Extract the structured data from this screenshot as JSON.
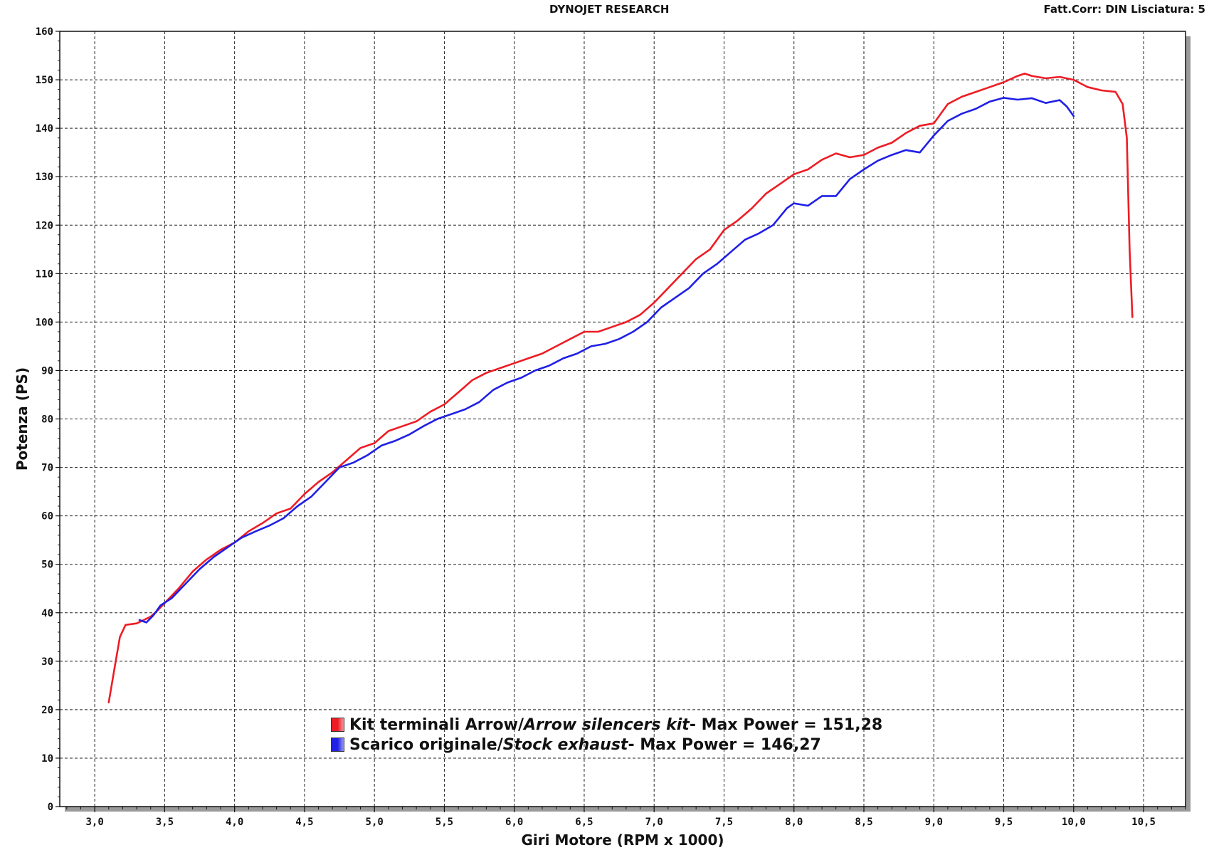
{
  "header": {
    "title": "DYNOJET RESEARCH",
    "correction": "Fatt.Corr: DIN  Lisciatura: 5"
  },
  "colors": {
    "series1": "#ee1c24",
    "series2": "#1f1fe6",
    "grid": "#222222",
    "shadow": "#9a9a9a"
  },
  "legend": {
    "items": [
      {
        "name_it": "Kit terminali Arrow",
        "sep": " / ",
        "name_en": "Arrow silencers kit",
        "max_text": " - Max Power = 151,28",
        "color": "#ee1c24"
      },
      {
        "name_it": "Scarico originale",
        "sep": " / ",
        "name_en": "Stock exhaust",
        "max_text": " - Max Power = 146,27",
        "color": "#1f1fe6"
      }
    ]
  },
  "chart_data": {
    "type": "line",
    "xlabel": "Giri Motore (RPM x 1000)",
    "ylabel": "Potenza (PS)",
    "xlim": [
      2.75,
      10.8
    ],
    "ylim": [
      0,
      160
    ],
    "xticks": [
      3.0,
      3.5,
      4.0,
      4.5,
      5.0,
      5.5,
      6.0,
      6.5,
      7.0,
      7.5,
      8.0,
      8.5,
      9.0,
      9.5,
      10.0,
      10.5
    ],
    "xtick_labels": [
      "3,0",
      "3,5",
      "4,0",
      "4,5",
      "5,0",
      "5,5",
      "6,0",
      "6,5",
      "7,0",
      "7,5",
      "8,0",
      "8,5",
      "9,0",
      "9,5",
      "10,0",
      "10,5"
    ],
    "yticks": [
      0,
      10,
      20,
      30,
      40,
      50,
      60,
      70,
      80,
      90,
      100,
      110,
      120,
      130,
      140,
      150,
      160
    ],
    "grid": true,
    "legend_position": "bottom-center",
    "series": [
      {
        "name": "Kit terminali Arrow / Arrow silencers kit",
        "color": "#ee1c24",
        "points": [
          [
            3.1,
            21.5
          ],
          [
            3.15,
            30
          ],
          [
            3.18,
            35
          ],
          [
            3.22,
            37.5
          ],
          [
            3.3,
            37.8
          ],
          [
            3.35,
            38.5
          ],
          [
            3.4,
            39.2
          ],
          [
            3.45,
            40.5
          ],
          [
            3.5,
            42
          ],
          [
            3.6,
            45
          ],
          [
            3.7,
            48.5
          ],
          [
            3.8,
            51
          ],
          [
            3.9,
            53
          ],
          [
            4.0,
            54.5
          ],
          [
            4.1,
            56.8
          ],
          [
            4.2,
            58.5
          ],
          [
            4.3,
            60.5
          ],
          [
            4.4,
            61.5
          ],
          [
            4.5,
            64.5
          ],
          [
            4.6,
            67
          ],
          [
            4.7,
            69
          ],
          [
            4.8,
            71.5
          ],
          [
            4.9,
            74
          ],
          [
            5.0,
            75
          ],
          [
            5.1,
            77.5
          ],
          [
            5.2,
            78.5
          ],
          [
            5.3,
            79.5
          ],
          [
            5.4,
            81.5
          ],
          [
            5.5,
            83
          ],
          [
            5.6,
            85.5
          ],
          [
            5.7,
            88
          ],
          [
            5.8,
            89.5
          ],
          [
            5.9,
            90.5
          ],
          [
            6.0,
            91.5
          ],
          [
            6.1,
            92.5
          ],
          [
            6.2,
            93.5
          ],
          [
            6.3,
            95
          ],
          [
            6.4,
            96.5
          ],
          [
            6.5,
            98
          ],
          [
            6.6,
            98
          ],
          [
            6.7,
            99
          ],
          [
            6.8,
            100
          ],
          [
            6.9,
            101.5
          ],
          [
            7.0,
            104
          ],
          [
            7.1,
            107
          ],
          [
            7.2,
            110
          ],
          [
            7.3,
            113
          ],
          [
            7.4,
            115
          ],
          [
            7.5,
            119
          ],
          [
            7.6,
            121
          ],
          [
            7.7,
            123.5
          ],
          [
            7.8,
            126.5
          ],
          [
            7.9,
            128.5
          ],
          [
            8.0,
            130.5
          ],
          [
            8.1,
            131.5
          ],
          [
            8.2,
            133.5
          ],
          [
            8.3,
            134.8
          ],
          [
            8.4,
            134
          ],
          [
            8.5,
            134.5
          ],
          [
            8.6,
            136
          ],
          [
            8.7,
            137
          ],
          [
            8.8,
            139
          ],
          [
            8.9,
            140.5
          ],
          [
            9.0,
            141
          ],
          [
            9.1,
            145
          ],
          [
            9.2,
            146.5
          ],
          [
            9.3,
            147.5
          ],
          [
            9.4,
            148.5
          ],
          [
            9.5,
            149.5
          ],
          [
            9.6,
            150.8
          ],
          [
            9.65,
            151.28
          ],
          [
            9.7,
            150.8
          ],
          [
            9.8,
            150.3
          ],
          [
            9.9,
            150.6
          ],
          [
            10.0,
            150
          ],
          [
            10.1,
            148.5
          ],
          [
            10.2,
            147.8
          ],
          [
            10.3,
            147.5
          ],
          [
            10.35,
            145
          ],
          [
            10.38,
            138
          ],
          [
            10.4,
            115
          ],
          [
            10.42,
            101
          ]
        ]
      },
      {
        "name": "Scarico originale / Stock exhaust",
        "color": "#1f1fe6",
        "points": [
          [
            3.32,
            38.5
          ],
          [
            3.37,
            38
          ],
          [
            3.42,
            39.5
          ],
          [
            3.47,
            41.5
          ],
          [
            3.55,
            43
          ],
          [
            3.65,
            46
          ],
          [
            3.75,
            49
          ],
          [
            3.85,
            51.5
          ],
          [
            3.95,
            53.5
          ],
          [
            4.05,
            55.5
          ],
          [
            4.15,
            56.8
          ],
          [
            4.25,
            58
          ],
          [
            4.35,
            59.5
          ],
          [
            4.45,
            62
          ],
          [
            4.55,
            64
          ],
          [
            4.65,
            67
          ],
          [
            4.75,
            70
          ],
          [
            4.85,
            71
          ],
          [
            4.95,
            72.5
          ],
          [
            5.05,
            74.5
          ],
          [
            5.15,
            75.5
          ],
          [
            5.25,
            76.8
          ],
          [
            5.35,
            78.5
          ],
          [
            5.45,
            80
          ],
          [
            5.55,
            81
          ],
          [
            5.65,
            82
          ],
          [
            5.75,
            83.5
          ],
          [
            5.85,
            86
          ],
          [
            5.95,
            87.5
          ],
          [
            6.05,
            88.5
          ],
          [
            6.15,
            90
          ],
          [
            6.25,
            91
          ],
          [
            6.35,
            92.5
          ],
          [
            6.45,
            93.5
          ],
          [
            6.55,
            95
          ],
          [
            6.65,
            95.5
          ],
          [
            6.75,
            96.5
          ],
          [
            6.85,
            98
          ],
          [
            6.95,
            100
          ],
          [
            7.05,
            103
          ],
          [
            7.15,
            105
          ],
          [
            7.25,
            107
          ],
          [
            7.35,
            110
          ],
          [
            7.45,
            112
          ],
          [
            7.55,
            114.5
          ],
          [
            7.65,
            117
          ],
          [
            7.75,
            118.3
          ],
          [
            7.85,
            120
          ],
          [
            7.95,
            123.5
          ],
          [
            8.0,
            124.5
          ],
          [
            8.1,
            124
          ],
          [
            8.2,
            126
          ],
          [
            8.3,
            126
          ],
          [
            8.4,
            129.5
          ],
          [
            8.5,
            131.5
          ],
          [
            8.6,
            133.3
          ],
          [
            8.7,
            134.5
          ],
          [
            8.8,
            135.5
          ],
          [
            8.9,
            135
          ],
          [
            9.0,
            138.5
          ],
          [
            9.1,
            141.5
          ],
          [
            9.2,
            143
          ],
          [
            9.3,
            144
          ],
          [
            9.4,
            145.5
          ],
          [
            9.5,
            146.27
          ],
          [
            9.6,
            145.9
          ],
          [
            9.7,
            146.2
          ],
          [
            9.8,
            145.2
          ],
          [
            9.9,
            145.8
          ],
          [
            9.95,
            144.5
          ],
          [
            10.0,
            142.5
          ]
        ]
      }
    ]
  }
}
